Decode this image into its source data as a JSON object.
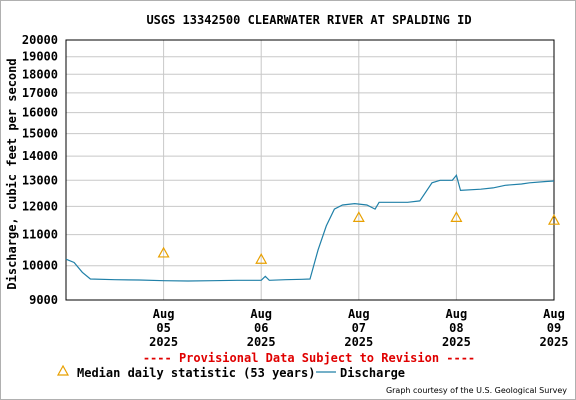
{
  "chart_data": {
    "type": "line",
    "title": "USGS 13342500 CLEARWATER RIVER AT SPALDING ID",
    "ylabel": "Discharge, cubic feet per second",
    "y_scale": "log",
    "ylim": [
      9000,
      20000
    ],
    "y_ticks": [
      9000,
      10000,
      11000,
      12000,
      13000,
      14000,
      15000,
      16000,
      17000,
      18000,
      19000,
      20000
    ],
    "y_tick_labels": [
      "9000",
      "10000",
      "11000",
      "12000",
      "13000",
      "14000",
      "15000",
      "16000",
      "17000",
      "18000",
      "19000",
      "20000"
    ],
    "xlim": [
      "2025-08-04 12:00",
      "2025-08-09 12:00"
    ],
    "x_ticks": [
      {
        "date": "2025-08-05 12:00",
        "month": "Aug",
        "day": "05",
        "year": "2025"
      },
      {
        "date": "2025-08-06 12:00",
        "month": "Aug",
        "day": "06",
        "year": "2025"
      },
      {
        "date": "2025-08-07 12:00",
        "month": "Aug",
        "day": "07",
        "year": "2025"
      },
      {
        "date": "2025-08-08 12:00",
        "month": "Aug",
        "day": "08",
        "year": "2025"
      },
      {
        "date": "2025-08-09 12:00",
        "month": "Aug",
        "day": "09",
        "year": "2025"
      }
    ],
    "grid": true,
    "series": [
      {
        "name": "Discharge",
        "color": "#2080a8",
        "points": [
          [
            "2025-08-04 12:00",
            10200
          ],
          [
            "2025-08-04 14:00",
            10100
          ],
          [
            "2025-08-04 16:00",
            9800
          ],
          [
            "2025-08-04 18:00",
            9600
          ],
          [
            "2025-08-05 00:00",
            9580
          ],
          [
            "2025-08-05 06:00",
            9570
          ],
          [
            "2025-08-05 12:00",
            9550
          ],
          [
            "2025-08-05 18:00",
            9540
          ],
          [
            "2025-08-06 00:00",
            9550
          ],
          [
            "2025-08-06 06:00",
            9560
          ],
          [
            "2025-08-06 12:00",
            9560
          ],
          [
            "2025-08-06 13:00",
            9680
          ],
          [
            "2025-08-06 14:00",
            9560
          ],
          [
            "2025-08-06 18:00",
            9580
          ],
          [
            "2025-08-06 22:00",
            9590
          ],
          [
            "2025-08-07 00:00",
            9600
          ],
          [
            "2025-08-07 02:00",
            10500
          ],
          [
            "2025-08-07 04:00",
            11300
          ],
          [
            "2025-08-07 06:00",
            11900
          ],
          [
            "2025-08-07 08:00",
            12050
          ],
          [
            "2025-08-07 11:00",
            12100
          ],
          [
            "2025-08-07 14:00",
            12050
          ],
          [
            "2025-08-07 16:00",
            11900
          ],
          [
            "2025-08-07 17:00",
            12150
          ],
          [
            "2025-08-07 20:00",
            12150
          ],
          [
            "2025-08-08 00:00",
            12150
          ],
          [
            "2025-08-08 03:00",
            12200
          ],
          [
            "2025-08-08 06:00",
            12900
          ],
          [
            "2025-08-08 08:00",
            13000
          ],
          [
            "2025-08-08 11:00",
            13000
          ],
          [
            "2025-08-08 12:00",
            13200
          ],
          [
            "2025-08-08 13:00",
            12600
          ],
          [
            "2025-08-08 18:00",
            12650
          ],
          [
            "2025-08-08 21:00",
            12700
          ],
          [
            "2025-08-09 00:00",
            12800
          ],
          [
            "2025-08-09 04:00",
            12850
          ],
          [
            "2025-08-09 06:00",
            12900
          ],
          [
            "2025-08-09 10:00",
            12950
          ],
          [
            "2025-08-09 12:00",
            12970
          ]
        ]
      },
      {
        "name": "Median daily statistic (53 years)",
        "color": "#e8a000",
        "marker": "triangle",
        "points": [
          [
            "2025-08-05 12:00",
            10400
          ],
          [
            "2025-08-06 12:00",
            10200
          ],
          [
            "2025-08-07 12:00",
            11600
          ],
          [
            "2025-08-08 12:00",
            11600
          ],
          [
            "2025-08-09 12:00",
            11500
          ]
        ]
      }
    ],
    "legend": {
      "position": "bottom",
      "items": [
        {
          "label": "Median daily statistic (53 years)",
          "symbol": "triangle",
          "color": "#e8a000"
        },
        {
          "label": "Discharge",
          "symbol": "line",
          "color": "#2080a8"
        }
      ]
    }
  },
  "notice": "---- Provisional Data Subject to Revision ----",
  "notice_color": "#e00000",
  "credit": "Graph courtesy of the U.S. Geological Survey"
}
